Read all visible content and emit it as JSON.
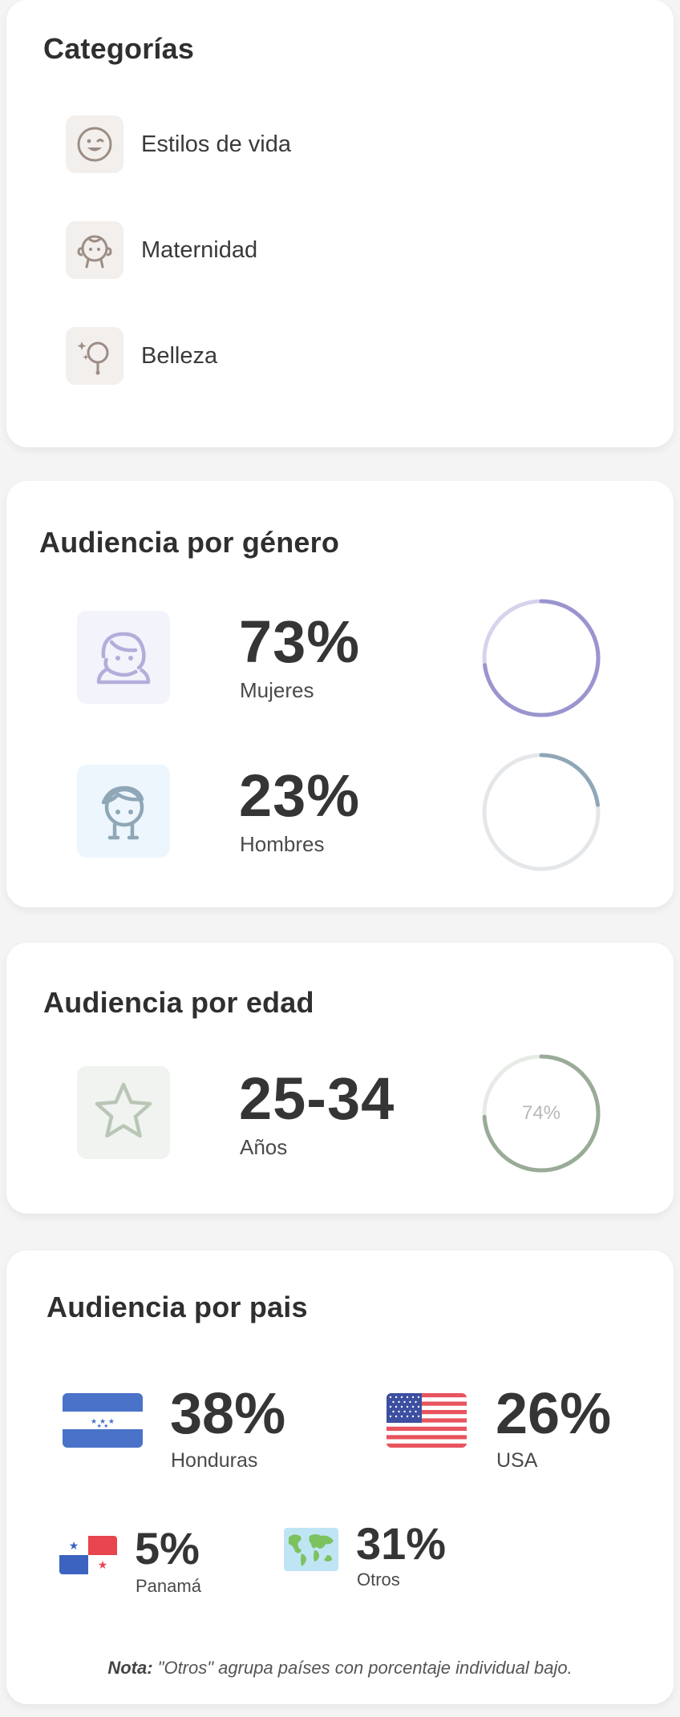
{
  "categories": {
    "title": "Categorías",
    "items": [
      {
        "label": "Estilos de vida",
        "icon": "smile-face-icon"
      },
      {
        "label": "Maternidad",
        "icon": "baby-icon"
      },
      {
        "label": "Belleza",
        "icon": "beauty-mirror-icon"
      }
    ]
  },
  "gender": {
    "title": "Audiencia por género",
    "rows": [
      {
        "value": "73%",
        "label": "Mujeres",
        "percent": 73,
        "color": "#9a95cf",
        "track": "#d6d4ec",
        "icon": "woman-icon"
      },
      {
        "value": "23%",
        "label": "Hombres",
        "percent": 23,
        "color": "#8fa7b7",
        "track": "#e4e7ea",
        "icon": "man-icon"
      }
    ]
  },
  "age": {
    "title": "Audiencia por edad",
    "value": "25-34",
    "label": "Años",
    "ring_text": "74%",
    "percent": 74,
    "color": "#9aab98",
    "icon": "star-icon"
  },
  "country": {
    "title": "Audiencia por pais",
    "items": [
      {
        "value": "38%",
        "label": "Honduras",
        "icon": "honduras-flag-icon"
      },
      {
        "value": "26%",
        "label": "USA",
        "icon": "usa-flag-icon"
      },
      {
        "value": "5%",
        "label": "Panamá",
        "icon": "panama-flag-icon"
      },
      {
        "value": "31%",
        "label": "Otros",
        "icon": "world-map-icon"
      }
    ],
    "note_prefix": "Nota:",
    "note_text": " \"Otros\" agrupa países con porcentaje individual bajo."
  }
}
